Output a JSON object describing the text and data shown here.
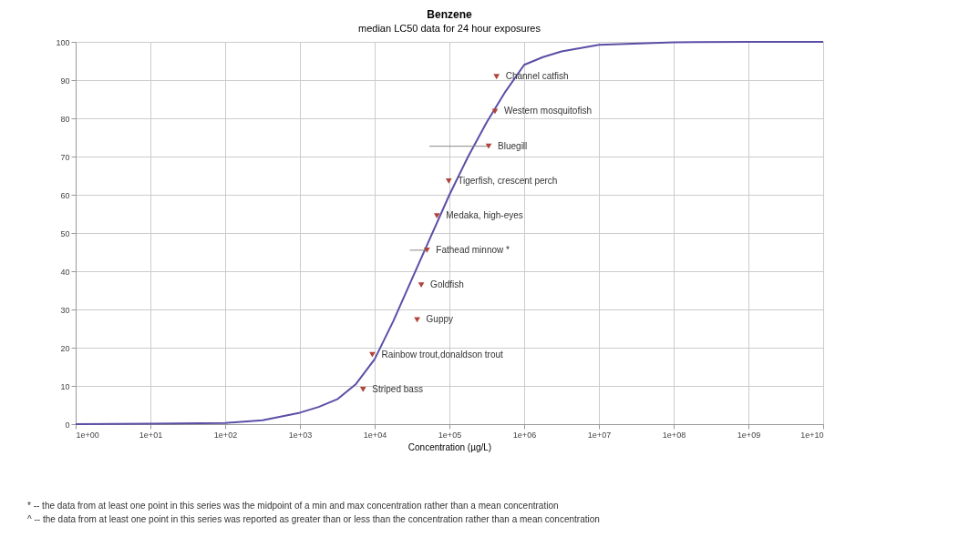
{
  "chart_data": {
    "type": "scatter",
    "title": "Benzene",
    "subtitle": "median LC50 data for 24 hour exposures",
    "xlabel": "Concentration (µg/L)",
    "log": "x",
    "grid": true,
    "xlim": [
      1,
      10000000000
    ],
    "ylim": [
      0,
      100
    ],
    "xticks": [
      {
        "value": 1,
        "label": "1e+00"
      },
      {
        "value": 10,
        "label": "1e+01"
      },
      {
        "value": 100,
        "label": "1e+02"
      },
      {
        "value": 1000,
        "label": "1e+03"
      },
      {
        "value": 10000,
        "label": "1e+04"
      },
      {
        "value": 100000,
        "label": "1e+05"
      },
      {
        "value": 1000000,
        "label": "1e+06"
      },
      {
        "value": 10000000,
        "label": "1e+07"
      },
      {
        "value": 100000000,
        "label": "1e+08"
      },
      {
        "value": 1000000000,
        "label": "1e+09"
      },
      {
        "value": 10000000000,
        "label": "1e+10"
      }
    ],
    "yticks": [
      0,
      10,
      20,
      30,
      40,
      50,
      60,
      70,
      80,
      90,
      100
    ],
    "series": [
      {
        "type": "line",
        "color": "#5a4fa6",
        "x": [
          1,
          10,
          100,
          316,
          1000,
          1780,
          3160,
          5620,
          10000,
          17800,
          31600,
          56200,
          100000,
          178000,
          316000,
          562000,
          1000000,
          1780000,
          3160000,
          10000000,
          100000000,
          1000000000,
          10000000000
        ],
        "values": [
          0,
          0.1,
          0.3,
          1,
          3,
          4.5,
          6.5,
          10.5,
          17,
          27,
          38,
          49,
          60,
          70,
          79,
          87,
          94,
          96,
          97.5,
          99.2,
          99.9,
          100,
          100
        ]
      },
      {
        "color": "#b0443a",
        "marker": "triangle",
        "x": [
          7000,
          9300,
          37000,
          42000,
          50000,
          68000,
          98000,
          335000,
          407000,
          427000
        ],
        "values": [
          9.1,
          18.2,
          27.3,
          36.4,
          45.5,
          54.5,
          63.6,
          72.7,
          81.8,
          90.9
        ],
        "value_labels": [
          "Striped bass",
          "Rainbow trout,donaldson trout",
          "Guppy",
          "Goldfish",
          "Fathead minnow *",
          "Medaka, high-eyes",
          "Tigerfish, crescent perch",
          "Bluegill",
          "Western mosquitofish",
          "Channel catfish"
        ],
        "xerrors": [
          null,
          null,
          null,
          null,
          [
            29500,
            50000
          ],
          null,
          null,
          [
            54000,
            335000
          ],
          null,
          null
        ]
      }
    ],
    "annotations": [
      "* -- the data from at least one point in this series was the midpoint of a min and max concentration rather than a mean concentration",
      "^ -- the data from at least one point in this series was reported as greater than or less than the concentration rather than a mean concentration"
    ]
  }
}
